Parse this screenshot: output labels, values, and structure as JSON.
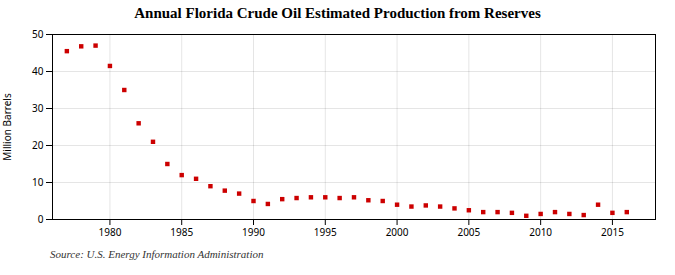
{
  "chart_data": {
    "type": "scatter",
    "title": "Annual Florida Crude Oil Estimated Production from Reserves",
    "ylabel": "Million Barrels",
    "caption": "Source: U.S. Energy Information Administration",
    "x": [
      1977,
      1978,
      1979,
      1980,
      1981,
      1982,
      1983,
      1984,
      1985,
      1986,
      1987,
      1988,
      1989,
      1990,
      1991,
      1992,
      1993,
      1994,
      1995,
      1996,
      1997,
      1998,
      1999,
      2000,
      2001,
      2002,
      2003,
      2004,
      2005,
      2006,
      2007,
      2008,
      2009,
      2010,
      2011,
      2012,
      2013,
      2014,
      2015,
      2016
    ],
    "values": [
      45.5,
      46.8,
      47.0,
      41.5,
      35.0,
      26.0,
      21.0,
      15.0,
      12.0,
      11.0,
      9.0,
      7.8,
      7.0,
      5.0,
      4.2,
      5.5,
      5.8,
      6.0,
      6.0,
      5.8,
      6.0,
      5.2,
      5.0,
      4.0,
      3.5,
      3.8,
      3.5,
      3.0,
      2.5,
      2.0,
      2.0,
      1.8,
      1.0,
      1.5,
      2.0,
      1.5,
      1.2,
      4.0,
      1.8,
      2.0
    ],
    "color": "#CC0000",
    "marker": "square",
    "xlim": [
      1976,
      2018
    ],
    "ylim": [
      0,
      50
    ],
    "xticks": [
      1980,
      1985,
      1990,
      1995,
      2000,
      2005,
      2010,
      2015
    ],
    "yticks": [
      0,
      10,
      20,
      30,
      40,
      50
    ],
    "grid": true
  }
}
